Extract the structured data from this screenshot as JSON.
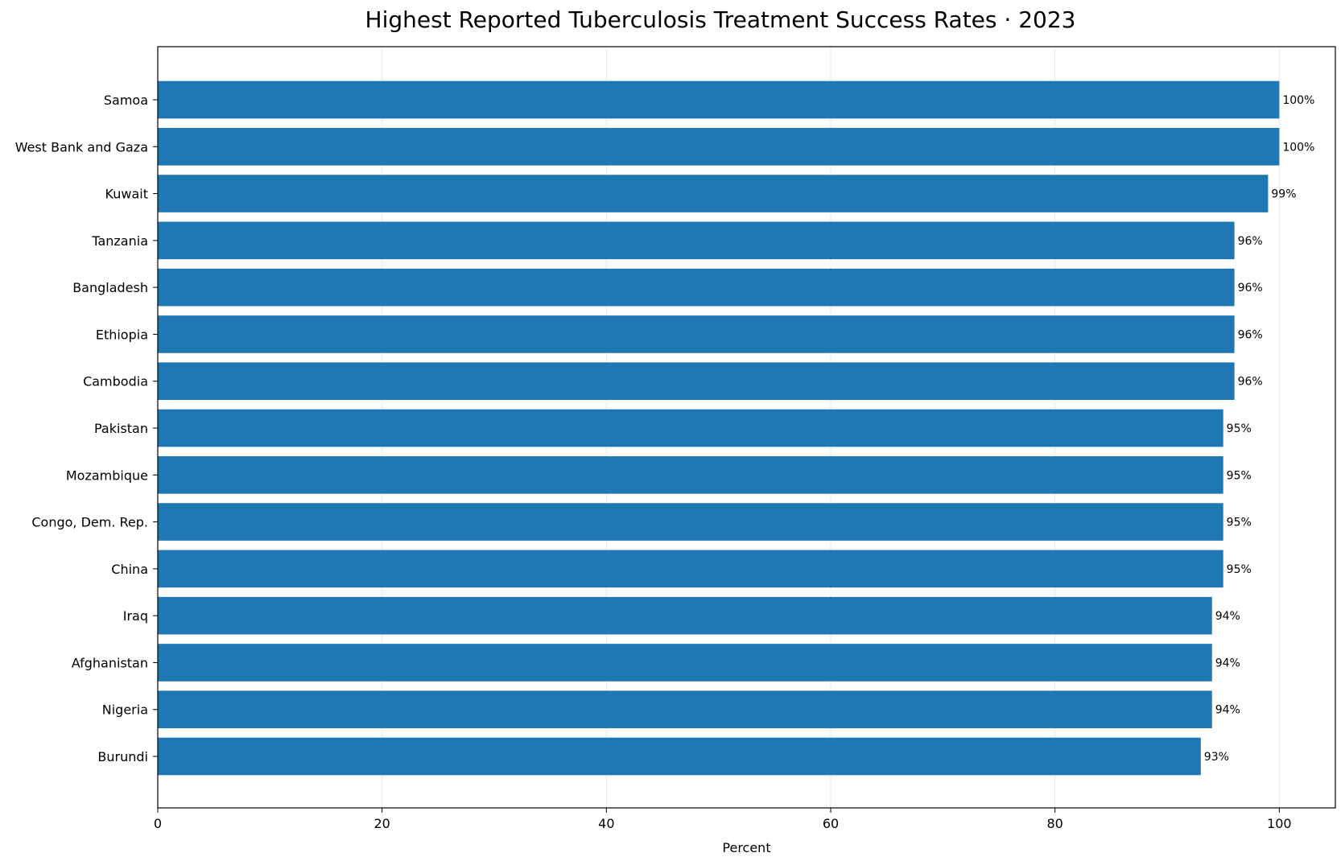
{
  "chart_data": {
    "type": "bar",
    "orientation": "horizontal",
    "title": "Highest Reported Tuberculosis Treatment Success Rates · 2023",
    "xlabel": "Percent",
    "ylabel": "",
    "xlim": [
      0,
      105
    ],
    "xticks": [
      0,
      20,
      40,
      60,
      80,
      100
    ],
    "grid": "vertical",
    "bar_color": "#1f77b4",
    "categories": [
      "Samoa",
      "West Bank and Gaza",
      "Kuwait",
      "Tanzania",
      "Bangladesh",
      "Ethiopia",
      "Cambodia",
      "Pakistan",
      "Mozambique",
      "Congo, Dem. Rep.",
      "China",
      "Iraq",
      "Afghanistan",
      "Nigeria",
      "Burundi"
    ],
    "values": [
      100,
      100,
      99,
      96,
      96,
      96,
      96,
      95,
      95,
      95,
      95,
      94,
      94,
      94,
      93
    ],
    "data_labels": [
      "100%",
      "100%",
      "99%",
      "96%",
      "96%",
      "96%",
      "96%",
      "95%",
      "95%",
      "95%",
      "95%",
      "94%",
      "94%",
      "94%",
      "93%"
    ]
  }
}
